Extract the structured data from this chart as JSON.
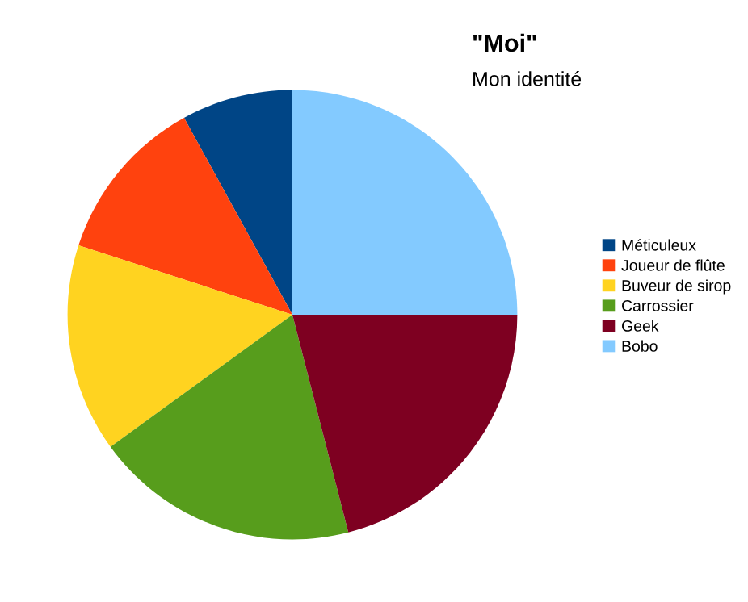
{
  "chart_data": {
    "type": "pie",
    "title": "\"Moi\"",
    "subtitle": "Mon identité",
    "categories": [
      "Méticuleux",
      "Joueur de flûte",
      "Buveur de sirop",
      "Carrossier",
      "Geek",
      "Bobo"
    ],
    "values": [
      8,
      12,
      15,
      19,
      21,
      25
    ],
    "colors": [
      "#004586",
      "#ff420e",
      "#ffd320",
      "#579d1c",
      "#7e0021",
      "#83caff"
    ],
    "legend": "right"
  }
}
